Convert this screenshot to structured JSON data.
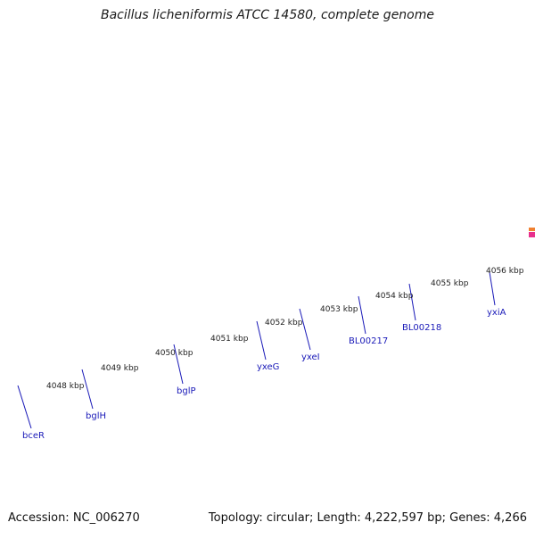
{
  "title": "Bacillus licheniformis ATCC 14580, complete genome",
  "accession_label": "Accession: NC_006270",
  "summary": "Topology: circular; Length: 4,222,597 bp; Genes: 4,266",
  "colors": {
    "backbone": "#8a8a8a",
    "tick": "#1f7a1f",
    "cds": "#1414e0",
    "rna": "#22c8d2",
    "misc": "#6b8e23",
    "gene_label": "#1a1ab8"
  },
  "ruler_labels": [
    "4048 kbp",
    "4049 kbp",
    "4050 kbp",
    "4051 kbp",
    "4052 kbp",
    "4053 kbp",
    "4054 kbp",
    "4055 kbp",
    "4056 kbp"
  ],
  "gene_labels": [
    "bceR",
    "bglH",
    "bglP",
    "yxeG",
    "yxeI",
    "BL00217",
    "BL00218",
    "yxiA"
  ]
}
